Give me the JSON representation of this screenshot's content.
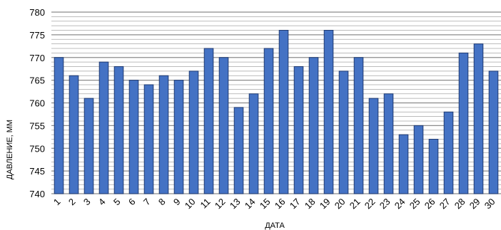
{
  "chart_data": {
    "type": "bar",
    "title": "",
    "xlabel": "ДАТА",
    "ylabel": "ДАВЛЕНИЕ, ММ",
    "ylim": [
      740,
      780
    ],
    "y_tick_step": 5,
    "y_minor_step": 1,
    "grid": true,
    "legend": "none",
    "categories": [
      "1",
      "2",
      "3",
      "4",
      "5",
      "6",
      "7",
      "8",
      "9",
      "10",
      "11",
      "12",
      "13",
      "14",
      "15",
      "16",
      "17",
      "18",
      "19",
      "20",
      "21",
      "22",
      "23",
      "24",
      "25",
      "26",
      "27",
      "28",
      "29",
      "30"
    ],
    "values": [
      770,
      766,
      761,
      769,
      768,
      765,
      764,
      766,
      765,
      767,
      772,
      770,
      759,
      762,
      772,
      776,
      768,
      770,
      776,
      767,
      770,
      761,
      762,
      753,
      755,
      752,
      758,
      771,
      773,
      767
    ],
    "colors": {
      "bar_fill": "#4472c4",
      "bar_stroke": "#1f3a70",
      "grid": "#a6a6a6",
      "text": "#000000"
    }
  }
}
